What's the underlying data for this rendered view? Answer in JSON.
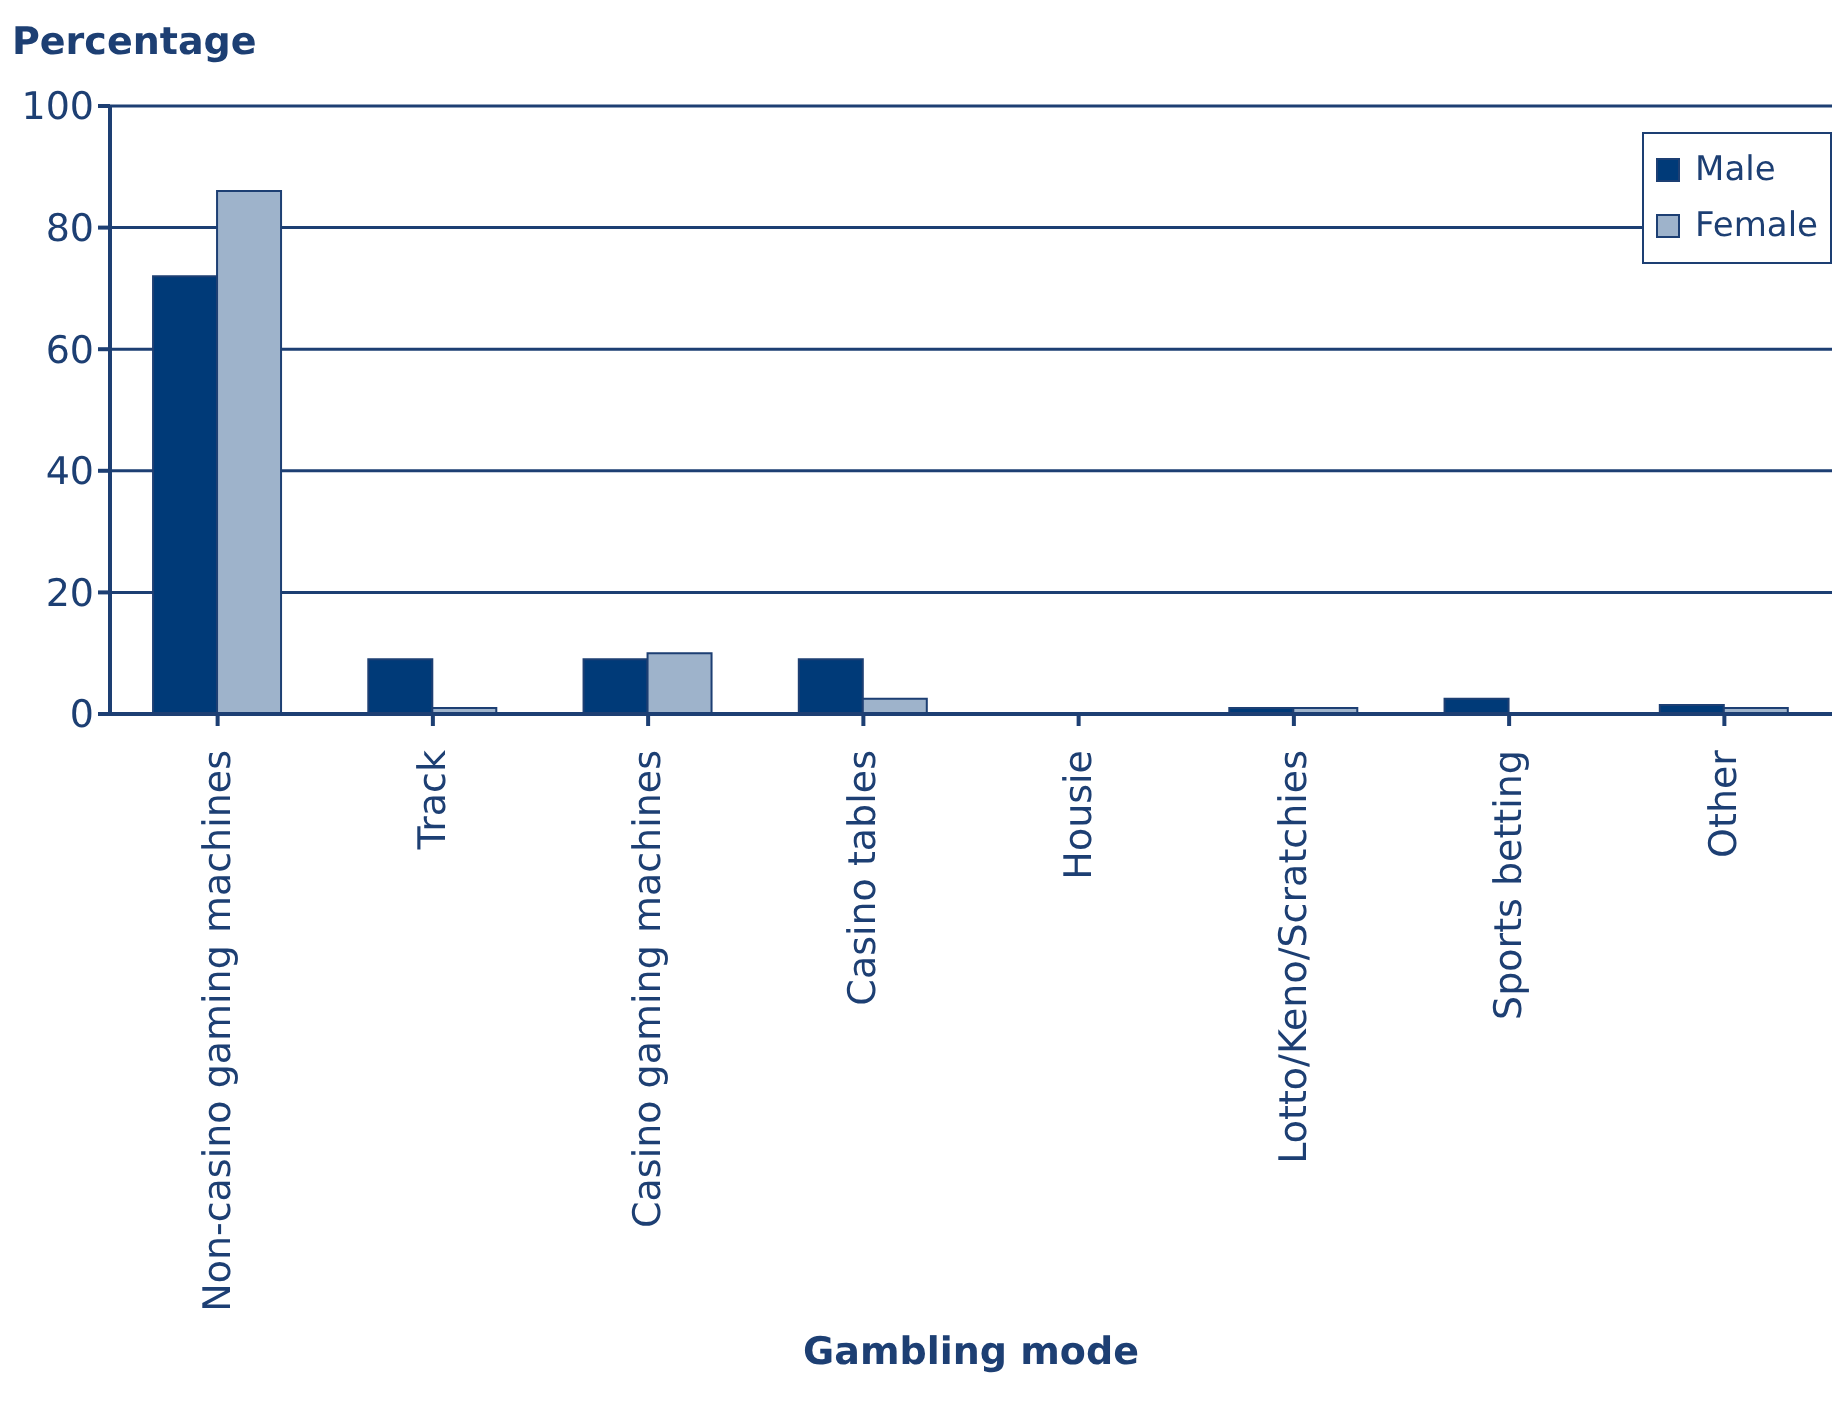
{
  "chart_data": {
    "type": "bar",
    "ylabel": "Percentage",
    "xlabel": "Gambling mode",
    "categories": [
      "Non-casino gaming machines",
      "Track",
      "Casino gaming machines",
      "Casino tables",
      "Housie",
      "Lotto/Keno/Scratchies",
      "Sports betting",
      "Other"
    ],
    "series": [
      {
        "name": "Male",
        "color": "#003a78",
        "values": [
          72,
          9,
          9,
          9,
          0,
          1,
          2.5,
          1.5
        ]
      },
      {
        "name": "Female",
        "color": "#9eb3cb",
        "values": [
          86,
          1,
          10,
          2.5,
          0,
          1,
          0,
          1
        ]
      }
    ],
    "ylim": [
      0,
      100
    ],
    "yticks": [
      0,
      20,
      40,
      60,
      80,
      100
    ],
    "grid": "y",
    "legend": "top right"
  }
}
